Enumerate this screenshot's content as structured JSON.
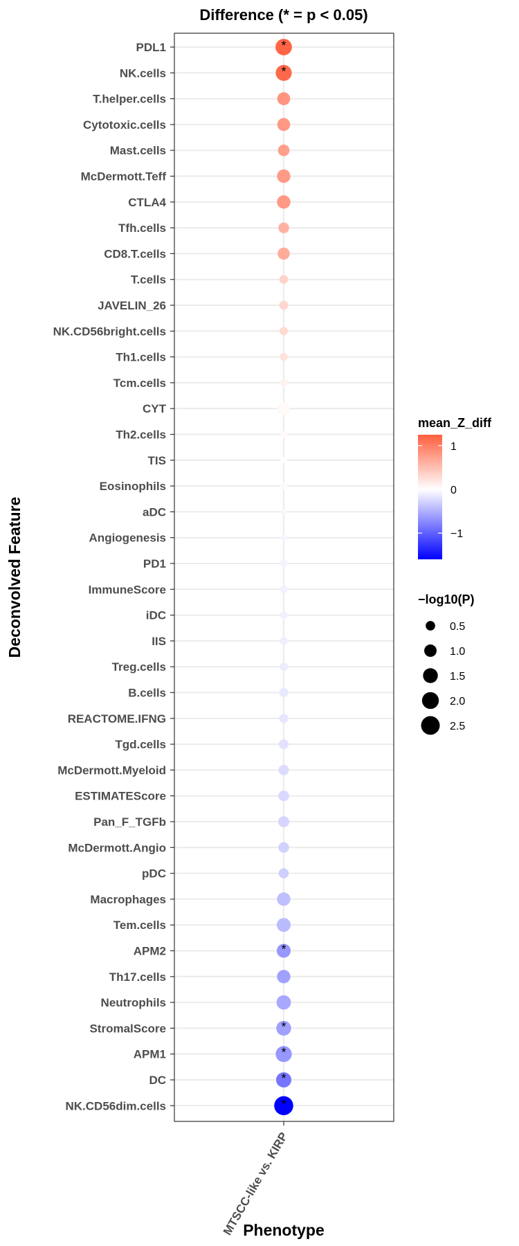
{
  "chart_data": {
    "type": "scatter",
    "title": "Difference (* = p < 0.05)",
    "xlabel": "Phenotype",
    "ylabel": "Deconvolved Feature",
    "x_categories": [
      "MTSCC-like vs. KIRP"
    ],
    "points": [
      {
        "feature": "PDL1",
        "mean_Z_diff": 1.2,
        "neglog10p": 1.9,
        "significant": true
      },
      {
        "feature": "NK.cells",
        "mean_Z_diff": 1.15,
        "neglog10p": 1.8,
        "significant": true
      },
      {
        "feature": "T.helper.cells",
        "mean_Z_diff": 0.75,
        "neglog10p": 1.1,
        "significant": false
      },
      {
        "feature": "Cytotoxic.cells",
        "mean_Z_diff": 0.72,
        "neglog10p": 1.1,
        "significant": false
      },
      {
        "feature": "Mast.cells",
        "mean_Z_diff": 0.65,
        "neglog10p": 0.85,
        "significant": false
      },
      {
        "feature": "McDermott.Teff",
        "mean_Z_diff": 0.7,
        "neglog10p": 1.2,
        "significant": false
      },
      {
        "feature": "CTLA4",
        "mean_Z_diff": 0.72,
        "neglog10p": 1.2,
        "significant": false
      },
      {
        "feature": "Tfh.cells",
        "mean_Z_diff": 0.5,
        "neglog10p": 0.7,
        "significant": false
      },
      {
        "feature": "CD8.T.cells",
        "mean_Z_diff": 0.55,
        "neglog10p": 0.95,
        "significant": false
      },
      {
        "feature": "T.cells",
        "mean_Z_diff": 0.25,
        "neglog10p": 0.4,
        "significant": false
      },
      {
        "feature": "JAVELIN_26",
        "mean_Z_diff": 0.22,
        "neglog10p": 0.45,
        "significant": false
      },
      {
        "feature": "NK.CD56bright.cells",
        "mean_Z_diff": 0.2,
        "neglog10p": 0.35,
        "significant": false
      },
      {
        "feature": "Th1.cells",
        "mean_Z_diff": 0.15,
        "neglog10p": 0.3,
        "significant": false
      },
      {
        "feature": "Tcm.cells",
        "mean_Z_diff": 0.05,
        "neglog10p": 0.25,
        "significant": false
      },
      {
        "feature": "CYT",
        "mean_Z_diff": 0.02,
        "neglog10p": 1.1,
        "significant": false
      },
      {
        "feature": "Th2.cells",
        "mean_Z_diff": 0.02,
        "neglog10p": 0.2,
        "significant": false
      },
      {
        "feature": "TIS",
        "mean_Z_diff": -0.03,
        "neglog10p": 0.15,
        "significant": false
      },
      {
        "feature": "Eosinophils",
        "mean_Z_diff": -0.08,
        "neglog10p": 0.2,
        "significant": false
      },
      {
        "feature": "aDC",
        "mean_Z_diff": -0.1,
        "neglog10p": 0.05,
        "significant": false
      },
      {
        "feature": "Angiogenesis",
        "mean_Z_diff": -0.12,
        "neglog10p": 0.15,
        "significant": false
      },
      {
        "feature": "PD1",
        "mean_Z_diff": -0.15,
        "neglog10p": 0.25,
        "significant": false
      },
      {
        "feature": "ImmuneScore",
        "mean_Z_diff": -0.17,
        "neglog10p": 0.3,
        "significant": false
      },
      {
        "feature": "iDC",
        "mean_Z_diff": -0.18,
        "neglog10p": 0.25,
        "significant": false
      },
      {
        "feature": "IIS",
        "mean_Z_diff": -0.2,
        "neglog10p": 0.3,
        "significant": false
      },
      {
        "feature": "Treg.cells",
        "mean_Z_diff": -0.22,
        "neglog10p": 0.35,
        "significant": false
      },
      {
        "feature": "B.cells",
        "mean_Z_diff": -0.25,
        "neglog10p": 0.45,
        "significant": false
      },
      {
        "feature": "REACTOME.IFNG",
        "mean_Z_diff": -0.27,
        "neglog10p": 0.45,
        "significant": false
      },
      {
        "feature": "Tgd.cells",
        "mean_Z_diff": -0.3,
        "neglog10p": 0.55,
        "significant": false
      },
      {
        "feature": "McDermott.Myeloid",
        "mean_Z_diff": -0.35,
        "neglog10p": 0.65,
        "significant": false
      },
      {
        "feature": "ESTIMATEScore",
        "mean_Z_diff": -0.37,
        "neglog10p": 0.7,
        "significant": false
      },
      {
        "feature": "Pan_F_TGFb",
        "mean_Z_diff": -0.4,
        "neglog10p": 0.75,
        "significant": false
      },
      {
        "feature": "McDermott.Angio",
        "mean_Z_diff": -0.42,
        "neglog10p": 0.7,
        "significant": false
      },
      {
        "feature": "pDC",
        "mean_Z_diff": -0.45,
        "neglog10p": 0.6,
        "significant": false
      },
      {
        "feature": "Macrophages",
        "mean_Z_diff": -0.55,
        "neglog10p": 1.2,
        "significant": false
      },
      {
        "feature": "Tem.cells",
        "mean_Z_diff": -0.58,
        "neglog10p": 1.3,
        "significant": false
      },
      {
        "feature": "APM2",
        "mean_Z_diff": -0.8,
        "neglog10p": 1.3,
        "significant": true
      },
      {
        "feature": "Th17.cells",
        "mean_Z_diff": -0.75,
        "neglog10p": 1.2,
        "significant": false
      },
      {
        "feature": "Neutrophils",
        "mean_Z_diff": -0.7,
        "neglog10p": 1.4,
        "significant": false
      },
      {
        "feature": "StromalScore",
        "mean_Z_diff": -0.75,
        "neglog10p": 1.5,
        "significant": true
      },
      {
        "feature": "APM1",
        "mean_Z_diff": -0.8,
        "neglog10p": 1.8,
        "significant": true
      },
      {
        "feature": "DC",
        "mean_Z_diff": -1.0,
        "neglog10p": 1.6,
        "significant": true
      },
      {
        "feature": "NK.CD56dim.cells",
        "mean_Z_diff": -1.6,
        "neglog10p": 2.6,
        "significant": true
      }
    ],
    "color_legend": {
      "title": "mean_Z_diff",
      "ticks": [
        "1",
        "0",
        "−1"
      ],
      "tick_values": [
        1,
        0,
        -1
      ],
      "range": [
        -1.6,
        1.25
      ],
      "low_color": "#0000ff",
      "mid_color": "#ffffff",
      "high_color": "#ff5f3f"
    },
    "size_legend": {
      "title": "−log10(P)",
      "values": [
        0.5,
        1.0,
        1.5,
        2.0,
        2.5
      ],
      "labels": [
        "0.5",
        "1.0",
        "1.5",
        "2.0",
        "2.5"
      ]
    },
    "significance_marker": "*"
  }
}
